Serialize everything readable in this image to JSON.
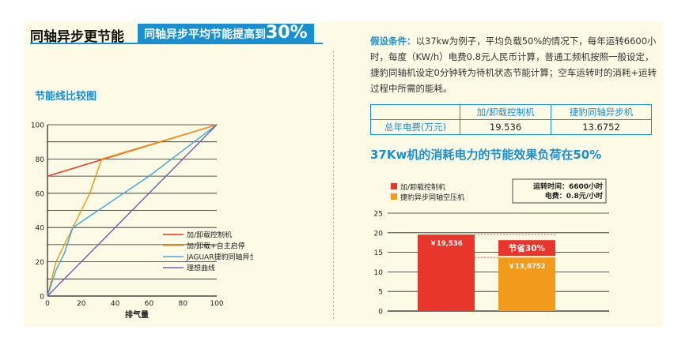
{
  "header": {
    "title": "同轴异步更节能",
    "tag_text": "同轴异步平均节能提高到",
    "tag_value": "30%"
  },
  "left_section": {
    "title": "节能线比较图"
  },
  "assumptions": {
    "label": "假设条件：",
    "text": "以37kw为例子，平均负载50%的情况下，每年运转6600小时，每度（KW/h）电费0.8元人民币计算，普通工频机按照一般设定，捷豹同轴机设定0分钟转为待机状态节能计算；空车运转时的消耗+运转过程中所需的能耗。"
  },
  "comparison_table": {
    "headers": [
      "",
      "加/卸载控制机",
      "捷豹同轴异步机"
    ],
    "row_label": "总年电费(万元)",
    "values": [
      "19.536",
      "13.6752"
    ]
  },
  "right_section": {
    "title": "37Kw机的消耗电力的节能效果负荷在50%"
  },
  "colors": {
    "accent": "#1a8fd0",
    "red": "#e8362a",
    "orange": "#f29a1c",
    "blue_line": "#4aa8d8",
    "purple": "#7b5fb0"
  },
  "chart_data": [
    {
      "type": "line",
      "xlabel": "排气量",
      "ylabel": "",
      "xlim": [
        0,
        100
      ],
      "ylim": [
        0,
        100
      ],
      "x_ticks": [
        "0",
        "20",
        "40",
        "60",
        "80",
        "100"
      ],
      "y_ticks": [
        "0",
        "20",
        "40",
        "60",
        "80",
        "100"
      ],
      "grid": "horizontal",
      "legend_position": "bottom-right",
      "series": [
        {
          "name": "加/卸载控制机",
          "color": "#e8362a",
          "points": [
            [
              0,
              70
            ],
            [
              100,
              100
            ]
          ]
        },
        {
          "name": "加/卸载+自主启停",
          "color": "#f29a1c",
          "points": [
            [
              0,
              0
            ],
            [
              5,
              20
            ],
            [
              10,
              30
            ],
            [
              15,
              40
            ],
            [
              25,
              60
            ],
            [
              32,
              80
            ],
            [
              100,
              100
            ]
          ]
        },
        {
          "name": "JAGUAR捷豹同轴异步机",
          "color": "#4aa8d8",
          "points": [
            [
              0,
              0
            ],
            [
              5,
              15
            ],
            [
              10,
              25
            ],
            [
              15,
              40
            ],
            [
              30,
              50
            ],
            [
              60,
              70
            ],
            [
              100,
              100
            ]
          ]
        },
        {
          "name": "理想曲线",
          "color": "#7b5fb0",
          "points": [
            [
              0,
              0
            ],
            [
              100,
              100
            ]
          ]
        }
      ]
    },
    {
      "type": "bar",
      "categories": [
        "加/卸载控制机",
        "捷豹异步同轴空压机"
      ],
      "values": [
        19.536,
        13.6752
      ],
      "value_labels": [
        "￥19,536",
        "￥13,6752"
      ],
      "colors": [
        "#e8362a",
        "#f29a1c"
      ],
      "ylim": [
        0,
        25
      ],
      "y_ticks": [
        "0",
        "5",
        "10",
        "15",
        "20",
        "25"
      ],
      "grid": "horizontal",
      "legend_position": "top-left",
      "annotation": "节省30%",
      "info_box": [
        "运转时间：6600小时",
        "电费：0.8元/小时"
      ]
    }
  ]
}
